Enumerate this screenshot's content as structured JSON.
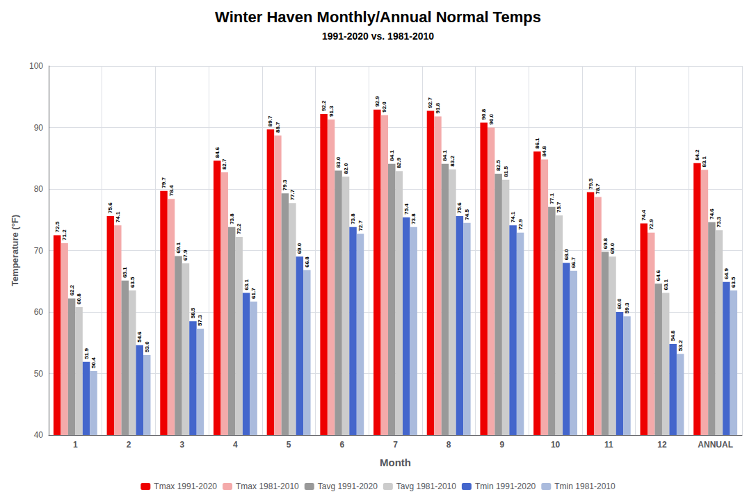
{
  "chart_data": {
    "type": "bar",
    "title": "Winter Haven Monthly/Annual Normal Temps",
    "subtitle": "1991-2020 vs. 1981-2010",
    "xlabel": "Month",
    "ylabel": "Temperature (°F)",
    "categories": [
      "1",
      "2",
      "3",
      "4",
      "5",
      "6",
      "7",
      "8",
      "9",
      "10",
      "11",
      "12",
      "ANNUAL"
    ],
    "series": [
      {
        "name": "Tmax 1991-2020",
        "color": "#EE0000",
        "values": [
          72.5,
          75.6,
          79.7,
          84.6,
          89.7,
          92.2,
          92.9,
          92.7,
          90.8,
          86.1,
          79.5,
          74.4,
          84.2
        ],
        "value_labels": [
          "72.5",
          "75.6",
          "79.7",
          "84.6",
          "89.7",
          "92.2",
          "92.9",
          "92.7",
          "90.8",
          "86.1",
          "79.5",
          "74.4",
          "84.2"
        ]
      },
      {
        "name": "Tmax 1981-2010",
        "color": "#F4AAAA",
        "values": [
          71.2,
          74.1,
          78.4,
          82.7,
          88.7,
          91.3,
          92.0,
          91.8,
          90.0,
          84.8,
          78.7,
          72.9,
          83.1
        ],
        "value_labels": [
          "71.2",
          "74.1",
          "78.4",
          "82.7",
          "88.7",
          "91.3",
          "92.0",
          "91.8",
          "90.0",
          "84.8",
          "78.7",
          "72.9",
          "83.1"
        ]
      },
      {
        "name": "Tavg 1991-2020",
        "color": "#999999",
        "values": [
          62.2,
          65.1,
          69.1,
          73.8,
          79.3,
          83.0,
          84.1,
          84.1,
          82.5,
          77.1,
          69.8,
          64.6,
          74.6
        ],
        "value_labels": [
          "62.2",
          "65.1",
          "69.1",
          "73.8",
          "79.3",
          "83.0",
          "84.1",
          "84.1",
          "82.5",
          "77.1",
          "69.8",
          "64.6",
          "74.6"
        ]
      },
      {
        "name": "Tavg 1981-2010",
        "color": "#CCCCCC",
        "values": [
          60.8,
          63.5,
          67.9,
          72.2,
          77.7,
          82.0,
          82.9,
          83.2,
          81.5,
          75.7,
          69.0,
          63.1,
          73.3
        ],
        "value_labels": [
          "60.8",
          "63.5",
          "67.9",
          "72.2",
          "77.7",
          "82.0",
          "82.9",
          "83.2",
          "81.5",
          "75.7",
          "69.0",
          "63.1",
          "73.3"
        ]
      },
      {
        "name": "Tmin 1991-2020",
        "color": "#4466CC",
        "values": [
          51.9,
          54.6,
          58.5,
          63.1,
          69.0,
          73.8,
          75.4,
          75.6,
          74.1,
          68.0,
          60.0,
          54.8,
          64.9
        ],
        "value_labels": [
          "51.9",
          "54.6",
          "58.5",
          "63.1",
          "69.0",
          "73.8",
          "75.4",
          "75.6",
          "74.1",
          "68.0",
          "60.0",
          "54.8",
          "64.9"
        ]
      },
      {
        "name": "Tmin 1981-2010",
        "color": "#AABBDD",
        "values": [
          50.4,
          53.0,
          57.3,
          61.7,
          66.8,
          72.7,
          73.8,
          74.5,
          72.9,
          66.7,
          59.3,
          53.2,
          63.5
        ],
        "value_labels": [
          "50.4",
          "53.0",
          "57.3",
          "61.7",
          "66.8",
          "72.7",
          "73.8",
          "74.5",
          "72.9",
          "66.7",
          "59.3",
          "53.2",
          "63.5"
        ]
      }
    ],
    "ylim": [
      40,
      100
    ],
    "yticks": [
      40,
      50,
      60,
      70,
      80,
      90,
      100
    ],
    "grid": true,
    "legend": "bottom",
    "data_labels": true
  }
}
